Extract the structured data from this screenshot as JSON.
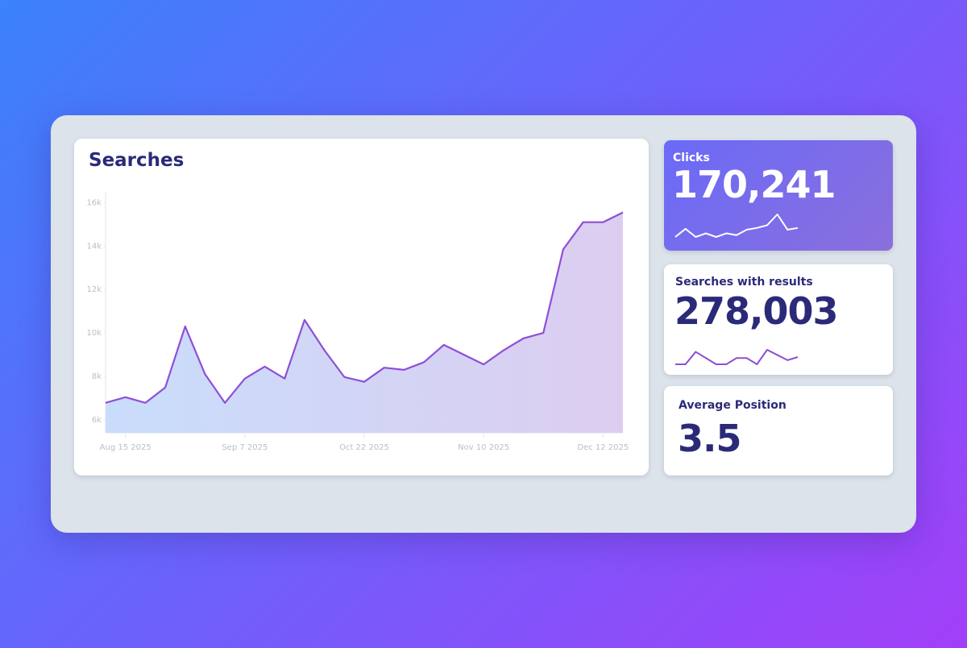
{
  "chart_data": {
    "type": "line",
    "title": "Searches",
    "categories": [
      null,
      "Aug 15 2025",
      null,
      null,
      null,
      null,
      null,
      "Sep 7 2025",
      null,
      null,
      null,
      null,
      null,
      "Oct 22 2025",
      null,
      null,
      null,
      null,
      null,
      "Nov 10 2025",
      null,
      null,
      null,
      null,
      null,
      "Dec 12 2025",
      null
    ],
    "values": [
      6780,
      7040,
      6780,
      7490,
      10300,
      8100,
      6780,
      7900,
      8450,
      7900,
      10600,
      9200,
      7970,
      7750,
      8400,
      8300,
      8650,
      9450,
      9000,
      8550,
      9200,
      9750,
      10000,
      13850,
      15100,
      15100,
      15550
    ],
    "color": "#8e4fd6",
    "ylim": [
      5400,
      16500
    ],
    "yticks": [
      {
        "value": 6000,
        "label": "6k"
      },
      {
        "value": 8000,
        "label": "8k"
      },
      {
        "value": 10000,
        "label": "10k"
      },
      {
        "value": 12000,
        "label": "12k"
      },
      {
        "value": 14000,
        "label": "14k"
      },
      {
        "value": 16000,
        "label": "16k"
      }
    ]
  },
  "cards": [
    {
      "label": "Clicks",
      "value": "170,241",
      "sparkline": [
        7,
        16,
        7,
        11,
        7,
        11,
        9,
        15,
        17,
        20,
        32,
        15,
        17
      ]
    },
    {
      "label": "Searches with results",
      "value": "278,003",
      "sparkline": [
        10,
        10,
        22,
        16,
        10,
        10,
        16,
        16,
        10,
        24,
        19,
        14,
        17
      ]
    },
    {
      "label": "Average Position",
      "value": 3.5
    }
  ]
}
